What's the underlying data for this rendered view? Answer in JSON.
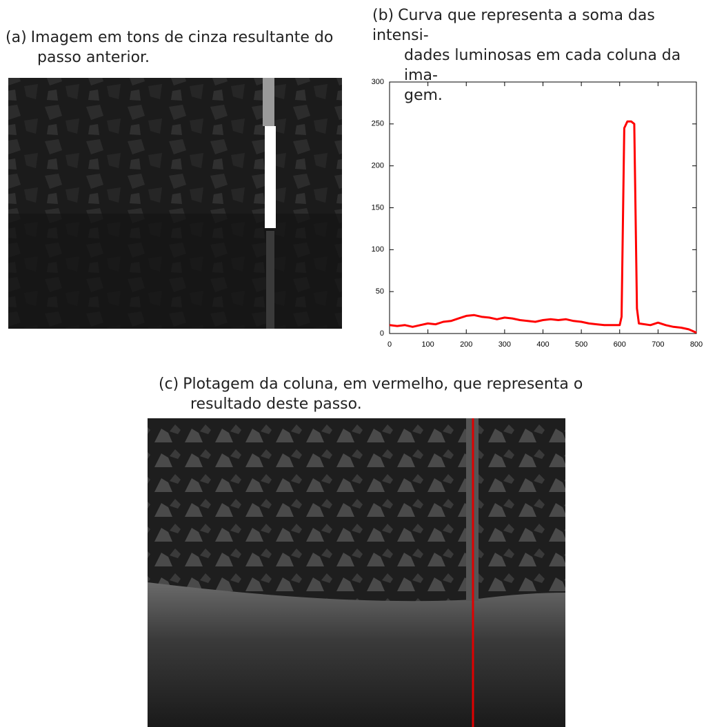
{
  "figure": {
    "captions": [
      {
        "label": "(a)",
        "lines": [
          "Imagem em tons de cinza resultante do",
          "passo anterior."
        ]
      },
      {
        "label": "(b)",
        "lines": [
          "Curva que representa a soma das intensi-",
          "dades luminosas em cada coluna da ima-",
          "gem."
        ]
      },
      {
        "label": "(c)",
        "lines": [
          "Plotagem da coluna, em vermelho, que representa o",
          "resultado deste passo."
        ]
      }
    ]
  },
  "chart_data": {
    "type": "line",
    "x": [
      0,
      20,
      40,
      60,
      80,
      100,
      120,
      140,
      160,
      180,
      200,
      220,
      240,
      260,
      280,
      300,
      320,
      340,
      360,
      380,
      400,
      420,
      440,
      460,
      480,
      500,
      520,
      540,
      560,
      580,
      600,
      605,
      612,
      620,
      630,
      638,
      645,
      650,
      680,
      700,
      720,
      740,
      760,
      780,
      800
    ],
    "series": [
      {
        "color": "#ff0000",
        "values": [
          10,
          9,
          10,
          8,
          10,
          12,
          11,
          14,
          15,
          18,
          21,
          22,
          20,
          19,
          17,
          19,
          18,
          16,
          15,
          14,
          16,
          17,
          16,
          17,
          15,
          14,
          12,
          11,
          10,
          10,
          10,
          20,
          245,
          253,
          253,
          250,
          30,
          12,
          10,
          13,
          10,
          8,
          7,
          5,
          1
        ]
      }
    ],
    "xlim": [
      0,
      800
    ],
    "ylim": [
      0,
      300
    ],
    "xticks": [
      0,
      100,
      200,
      300,
      400,
      500,
      600,
      700,
      800
    ],
    "yticks": [
      0,
      50,
      100,
      150,
      200,
      250,
      300
    ],
    "grid": false
  }
}
